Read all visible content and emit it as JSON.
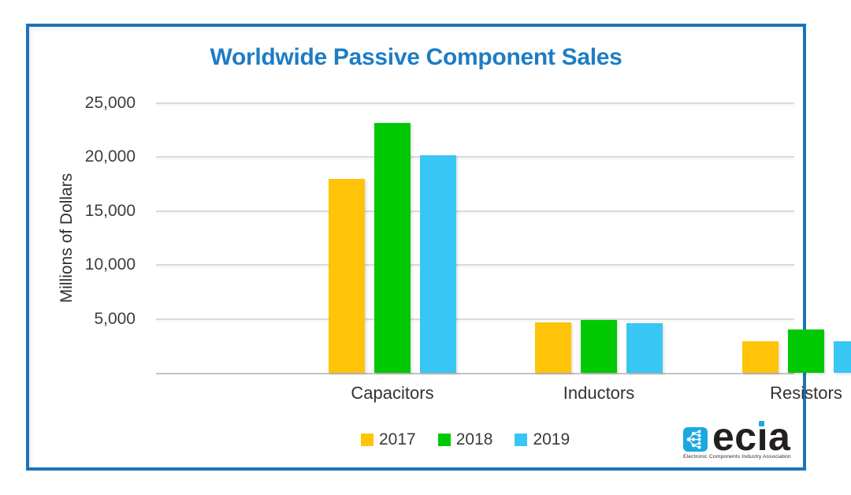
{
  "frame": {
    "border_color": "#1C73B9"
  },
  "colors": {
    "title": "#1E7CC4",
    "gridline": "#dadada",
    "axis_text": "#3d3d3d"
  },
  "legend": {
    "items": [
      {
        "label": "2017",
        "color": "#FFC408"
      },
      {
        "label": "2018",
        "color": "#00C802"
      },
      {
        "label": "2019",
        "color": "#38C6F4"
      }
    ]
  },
  "logo": {
    "text": "ecia",
    "tagline": "Electronic Components Industry Association",
    "icon_color": "#1BA7E1"
  },
  "chart_data": {
    "type": "bar",
    "title": "Worldwide Passive Component Sales",
    "ylabel": "Millions of Dollars",
    "xlabel": "",
    "categories": [
      "Capacitors",
      "Inductors",
      "Resistors"
    ],
    "series": [
      {
        "name": "2017",
        "color": "#FFC408",
        "values": [
          18000,
          4700,
          2900
        ]
      },
      {
        "name": "2018",
        "color": "#00C802",
        "values": [
          23200,
          4900,
          4000
        ]
      },
      {
        "name": "2019",
        "color": "#38C6F4",
        "values": [
          20200,
          4600,
          2900
        ]
      }
    ],
    "ylim": [
      0,
      25000
    ],
    "ytick_step": 5000,
    "ytick_labels": [
      "5,000",
      "10,000",
      "15,000",
      "20,000",
      "25,000"
    ],
    "grid": true,
    "legend_position": "bottom"
  }
}
